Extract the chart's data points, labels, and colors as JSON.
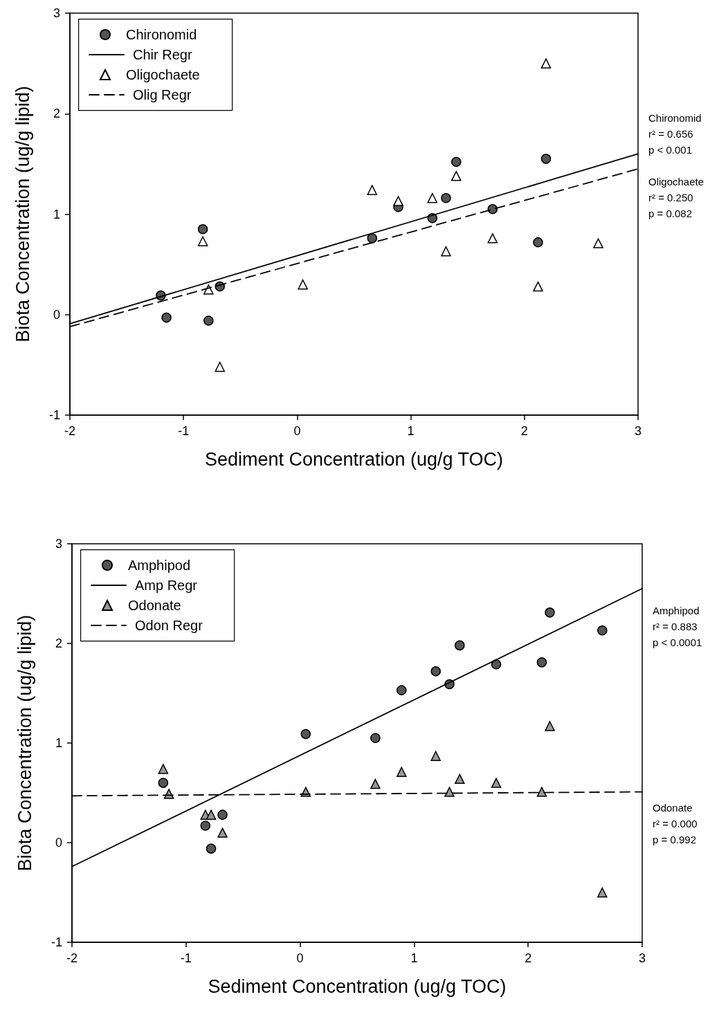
{
  "chart_data": [
    {
      "type": "scatter",
      "xlabel": "Sediment Concentration (ug/g TOC)",
      "ylabel": "Biota Concentration (ug/g lipid)",
      "xlim": [
        -2,
        3
      ],
      "xticks": [
        -2,
        -1,
        0,
        1,
        2,
        3
      ],
      "ylim": [
        -1,
        3
      ],
      "yticks": [
        -1,
        0,
        1,
        2,
        3
      ],
      "grid": false,
      "legend": "top left",
      "annotations": [
        "Chironomid\nr² = 0.656\np < 0.001",
        "Oligochaete\nr² = 0.250\np = 0.082"
      ],
      "series": [
        {
          "name": "Chironomid",
          "type": "scatter",
          "marker": "circle",
          "color": "#555555",
          "x": [
            -1.2,
            -1.15,
            -0.83,
            -0.78,
            -0.68,
            0.66,
            0.89,
            1.19,
            1.31,
            1.4,
            1.72,
            2.12,
            2.19
          ],
          "values": [
            0.19,
            -0.03,
            0.85,
            -0.06,
            0.28,
            0.76,
            1.07,
            0.96,
            1.16,
            1.52,
            1.05,
            0.72,
            1.55
          ]
        },
        {
          "name": "Chir Regr",
          "type": "line",
          "marker": "none",
          "line_style": "solid",
          "color": "#000000",
          "x": [
            -2,
            3
          ],
          "values": [
            -0.09,
            1.6
          ]
        },
        {
          "name": "Oligochaete",
          "type": "scatter",
          "marker": "triangle",
          "color": "#ffffff",
          "x": [
            -0.83,
            -0.78,
            -0.68,
            0.05,
            0.66,
            0.89,
            1.19,
            1.31,
            1.4,
            1.72,
            2.12,
            2.19,
            2.65
          ],
          "values": [
            0.73,
            0.25,
            -0.52,
            0.3,
            1.24,
            1.13,
            1.16,
            0.63,
            1.38,
            0.76,
            0.28,
            2.5,
            0.71
          ]
        },
        {
          "name": "Olig Regr",
          "type": "line",
          "marker": "none",
          "line_style": "dashed",
          "color": "#000000",
          "x": [
            -2,
            3
          ],
          "values": [
            -0.12,
            1.45
          ]
        }
      ]
    },
    {
      "type": "scatter",
      "xlabel": "Sediment Concentration (ug/g TOC)",
      "ylabel": "Biota Concentration (ug/g lipid)",
      "xlim": [
        -2,
        3
      ],
      "xticks": [
        -2,
        -1,
        0,
        1,
        2,
        3
      ],
      "ylim": [
        -1,
        3
      ],
      "yticks": [
        -1,
        0,
        1,
        2,
        3
      ],
      "grid": false,
      "legend": "top left",
      "annotations": [
        "Amphipod\nr² = 0.883\np < 0.0001",
        "Odonate\nr² = 0.000\np = 0.992"
      ],
      "series": [
        {
          "name": "Amphipod",
          "type": "scatter",
          "marker": "circle",
          "color": "#555555",
          "x": [
            -1.2,
            -0.83,
            -0.78,
            -0.68,
            0.05,
            0.66,
            0.89,
            1.19,
            1.31,
            1.4,
            1.72,
            2.12,
            2.19,
            2.65
          ],
          "values": [
            0.6,
            0.17,
            -0.06,
            0.28,
            1.09,
            1.05,
            1.53,
            1.72,
            1.59,
            1.98,
            1.79,
            1.81,
            2.31,
            2.13
          ]
        },
        {
          "name": "Amp Regr",
          "type": "line",
          "marker": "none",
          "line_style": "solid",
          "color": "#000000",
          "x": [
            -2,
            3
          ],
          "values": [
            -0.24,
            2.55
          ]
        },
        {
          "name": "Odonate",
          "type": "scatter",
          "marker": "triangle",
          "color": "#999999",
          "x": [
            -1.2,
            -1.15,
            -0.83,
            -0.78,
            -0.68,
            0.05,
            0.66,
            0.89,
            1.19,
            1.31,
            1.4,
            1.72,
            2.12,
            2.19,
            2.65
          ],
          "values": [
            0.74,
            0.49,
            0.28,
            0.28,
            0.1,
            0.51,
            0.59,
            0.71,
            0.87,
            0.51,
            0.64,
            0.6,
            0.51,
            1.17,
            -0.5
          ]
        },
        {
          "name": "Odon Regr",
          "type": "line",
          "marker": "none",
          "line_style": "dashed",
          "color": "#000000",
          "x": [
            -2,
            3
          ],
          "values": [
            0.47,
            0.51
          ]
        }
      ]
    }
  ]
}
